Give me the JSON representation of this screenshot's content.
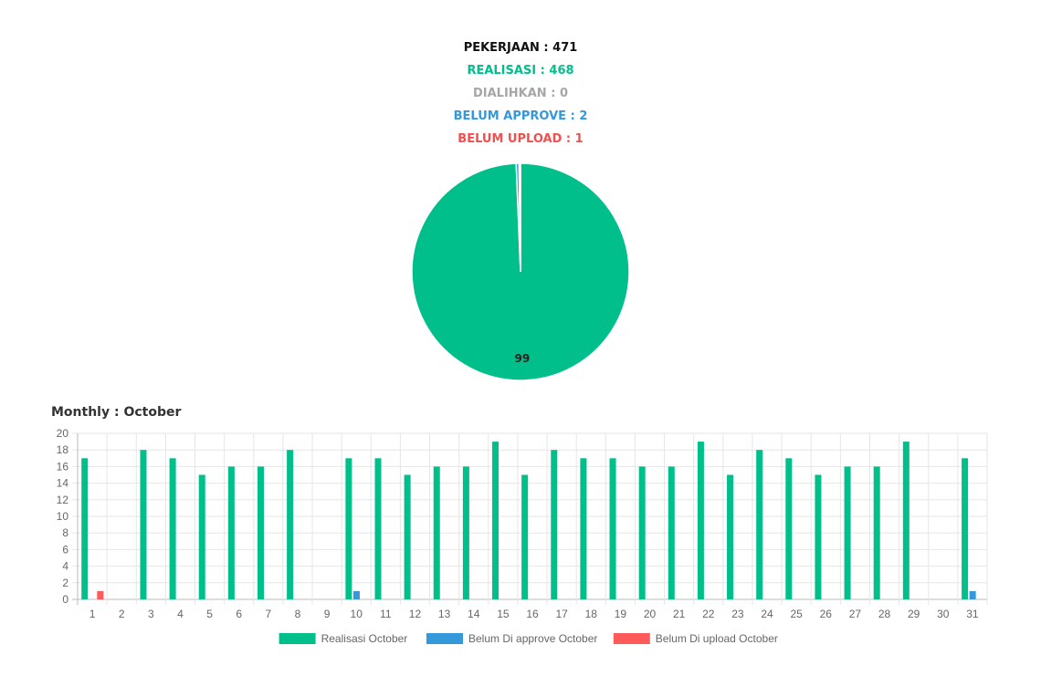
{
  "summary": {
    "pekerjaan": {
      "label": "PEKERJAAN",
      "value": "471",
      "color": "#111111"
    },
    "realisasi": {
      "label": "REALISASI",
      "value": "468",
      "color": "#00bf8a"
    },
    "dialihkan": {
      "label": "DIALIHKAN",
      "value": "0",
      "color": "#a6a6a6"
    },
    "belum_approve": {
      "label": "BELUM APPROVE",
      "value": "2",
      "color": "#3498db"
    },
    "belum_upload": {
      "label": "BELUM UPLOAD",
      "value": "1",
      "color": "#f05050"
    },
    "separator": " : "
  },
  "monthly": {
    "label": "Monthly",
    "separator": " : ",
    "month": "October"
  },
  "chart_data": [
    {
      "type": "pie",
      "slices": [
        {
          "value": 468,
          "color": "#00bf8a",
          "label": "99"
        },
        {
          "value": 0,
          "color": "#a6a6a6"
        },
        {
          "value": 2,
          "color": "#3498db"
        },
        {
          "value": 1,
          "color": "#f05050"
        }
      ]
    },
    {
      "type": "bar",
      "categories": [
        "1",
        "2",
        "3",
        "4",
        "5",
        "6",
        "7",
        "8",
        "9",
        "10",
        "11",
        "12",
        "13",
        "14",
        "15",
        "16",
        "17",
        "18",
        "19",
        "20",
        "21",
        "22",
        "23",
        "24",
        "25",
        "26",
        "27",
        "28",
        "29",
        "30",
        "31"
      ],
      "series": [
        {
          "name": "Realisasi October",
          "color": "#00bf8a",
          "values": [
            17,
            0,
            18,
            17,
            15,
            16,
            16,
            18,
            0,
            17,
            17,
            15,
            16,
            16,
            19,
            15,
            18,
            17,
            17,
            16,
            16,
            19,
            15,
            18,
            17,
            15,
            16,
            16,
            19,
            0,
            17
          ]
        },
        {
          "name": "Belum Di approve October",
          "color": "#3498db",
          "values": [
            0,
            0,
            0,
            0,
            0,
            0,
            0,
            0,
            0,
            1,
            0,
            0,
            0,
            0,
            0,
            0,
            0,
            0,
            0,
            0,
            0,
            0,
            0,
            0,
            0,
            0,
            0,
            0,
            0,
            0,
            1
          ]
        },
        {
          "name": "Belum Di upload October",
          "color": "#ff5a5a",
          "values": [
            1,
            0,
            0,
            0,
            0,
            0,
            0,
            0,
            0,
            0,
            0,
            0,
            0,
            0,
            0,
            0,
            0,
            0,
            0,
            0,
            0,
            0,
            0,
            0,
            0,
            0,
            0,
            0,
            0,
            0,
            0
          ]
        }
      ],
      "yticks": [
        "0",
        "2",
        "4",
        "6",
        "8",
        "10",
        "12",
        "14",
        "16",
        "18",
        "20"
      ],
      "ylim": [
        0,
        20
      ],
      "grid": true,
      "legend_position": "bottom"
    }
  ]
}
